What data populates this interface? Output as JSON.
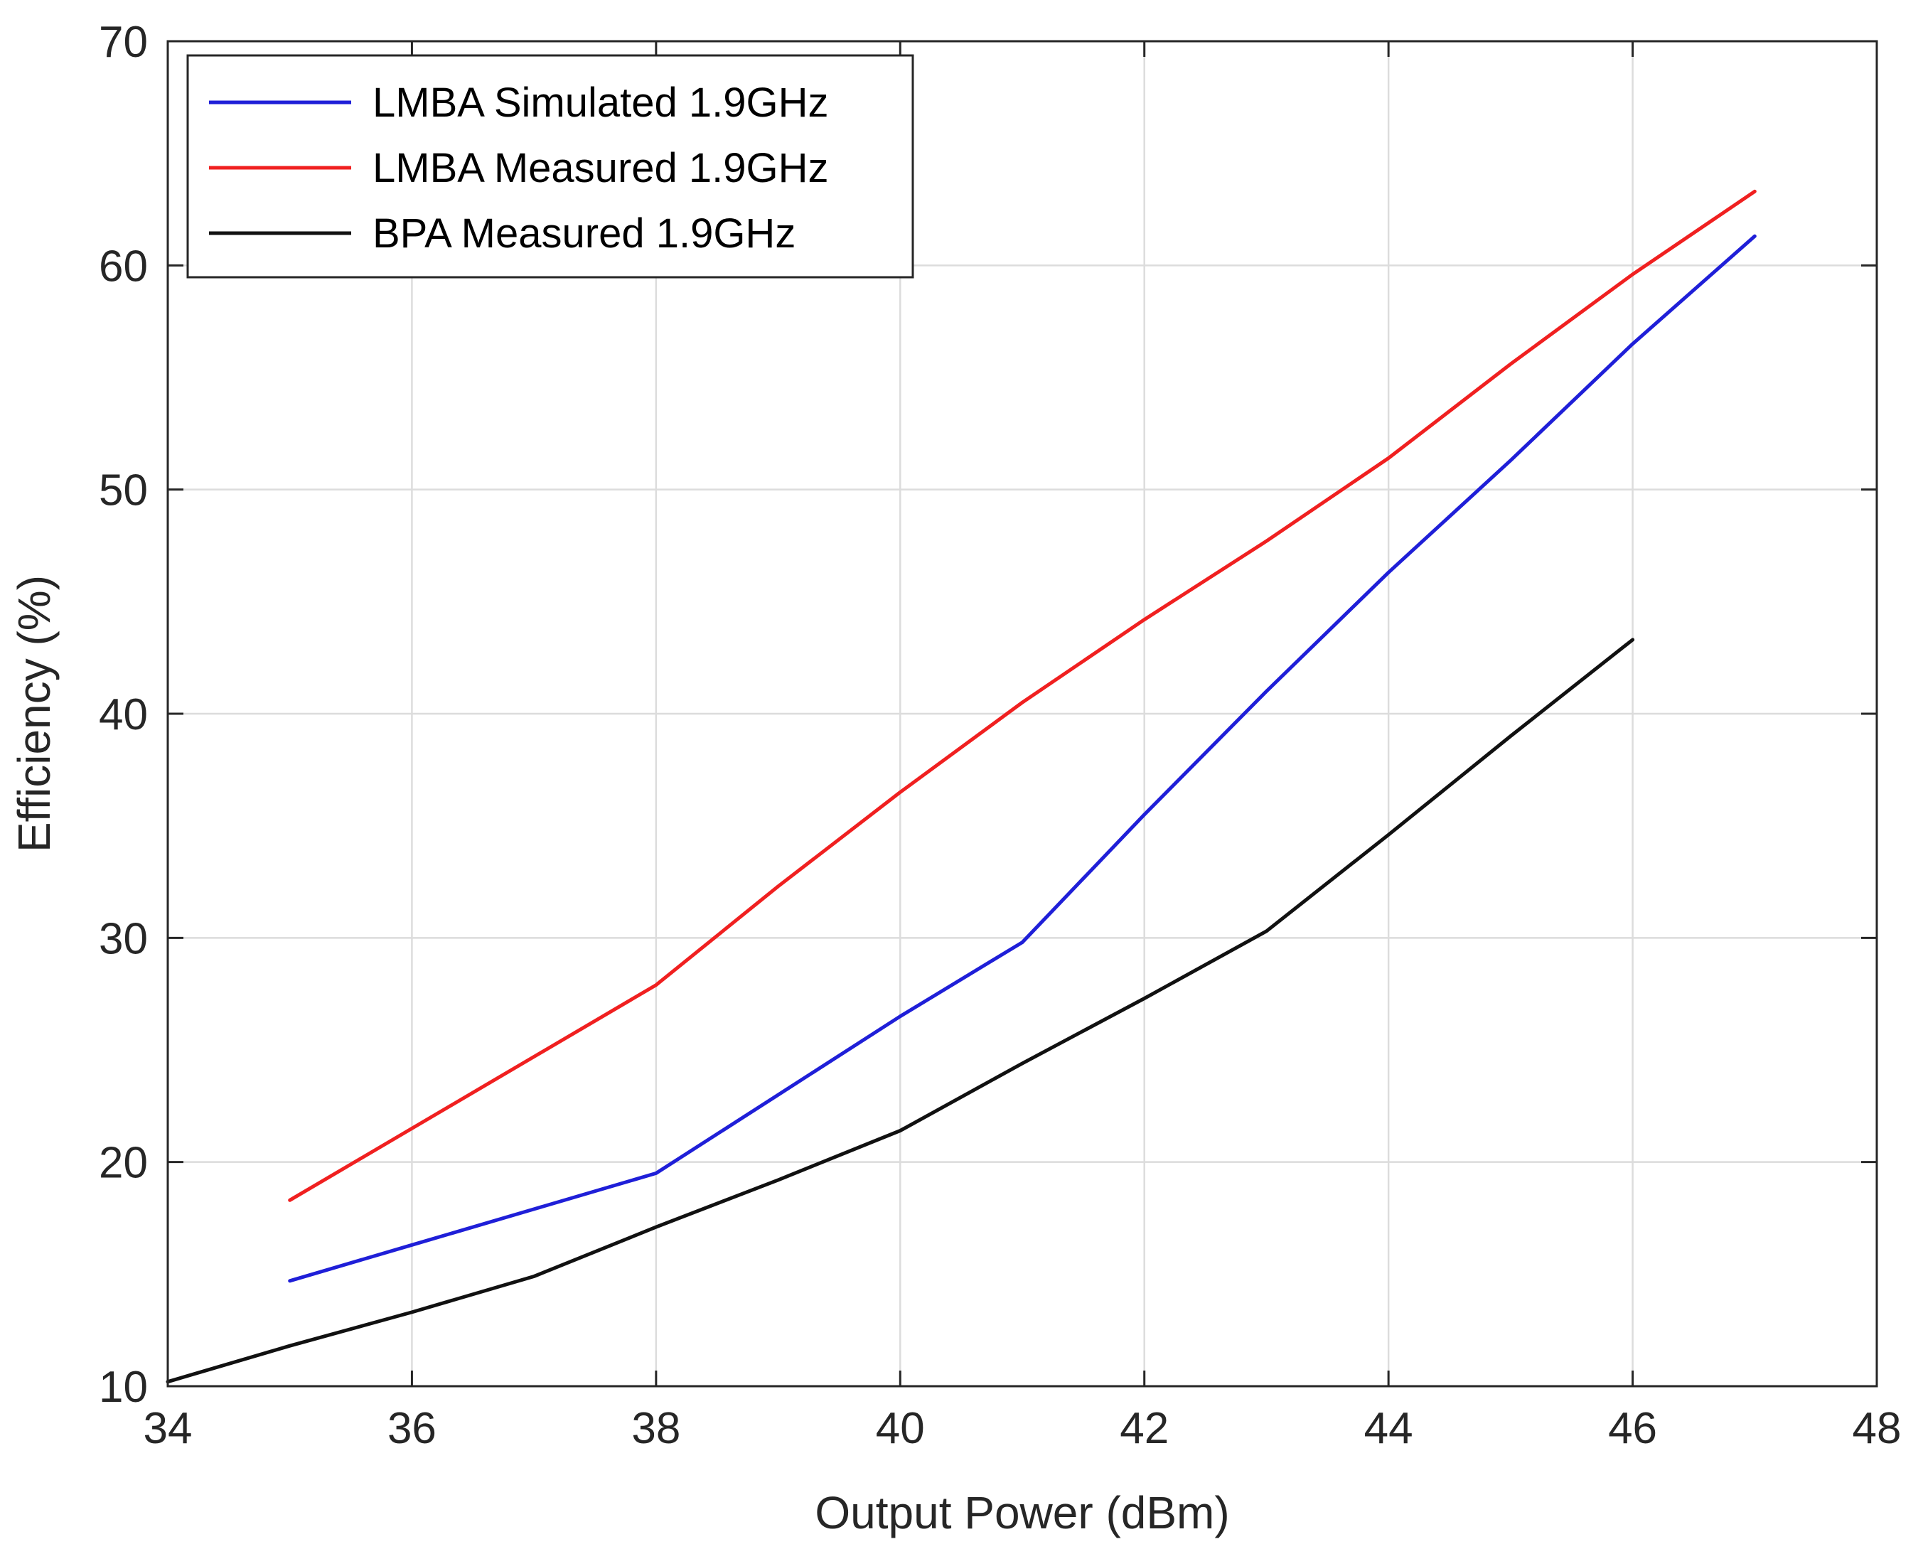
{
  "chart_data": {
    "type": "line",
    "title": "",
    "xlabel": "Output Power (dBm)",
    "ylabel": "Efficiency (%)",
    "xlim": [
      34,
      48
    ],
    "ylim": [
      10,
      70
    ],
    "xticks": [
      34,
      36,
      38,
      40,
      42,
      44,
      46,
      48
    ],
    "yticks": [
      10,
      20,
      30,
      40,
      50,
      60,
      70
    ],
    "grid": true,
    "legend_position": "top-left",
    "series": [
      {
        "name": "LMBA Simulated 1.9GHz",
        "color": "#1f1fd8",
        "x": [
          35,
          36,
          37,
          38,
          39,
          40,
          41,
          42,
          43,
          44,
          45,
          46,
          47
        ],
        "y": [
          14.7,
          16.3,
          17.9,
          19.5,
          23.0,
          26.5,
          29.8,
          35.5,
          41.0,
          46.3,
          51.3,
          56.5,
          61.3
        ]
      },
      {
        "name": "LMBA Measured 1.9GHz",
        "color": "#f02020",
        "x": [
          35,
          36,
          37,
          38,
          39,
          40,
          41,
          42,
          43,
          44,
          45,
          46,
          47
        ],
        "y": [
          18.3,
          21.5,
          24.7,
          27.9,
          32.3,
          36.5,
          40.5,
          44.2,
          47.7,
          51.4,
          55.6,
          59.6,
          63.3
        ]
      },
      {
        "name": "BPA Measured 1.9GHz",
        "color": "#111111",
        "x": [
          34,
          35,
          36,
          37,
          38,
          39,
          40,
          41,
          42,
          43,
          44,
          45,
          46
        ],
        "y": [
          10.2,
          11.8,
          13.3,
          14.9,
          17.1,
          19.2,
          21.4,
          24.4,
          27.3,
          30.3,
          34.6,
          39.0,
          43.3
        ]
      }
    ]
  }
}
